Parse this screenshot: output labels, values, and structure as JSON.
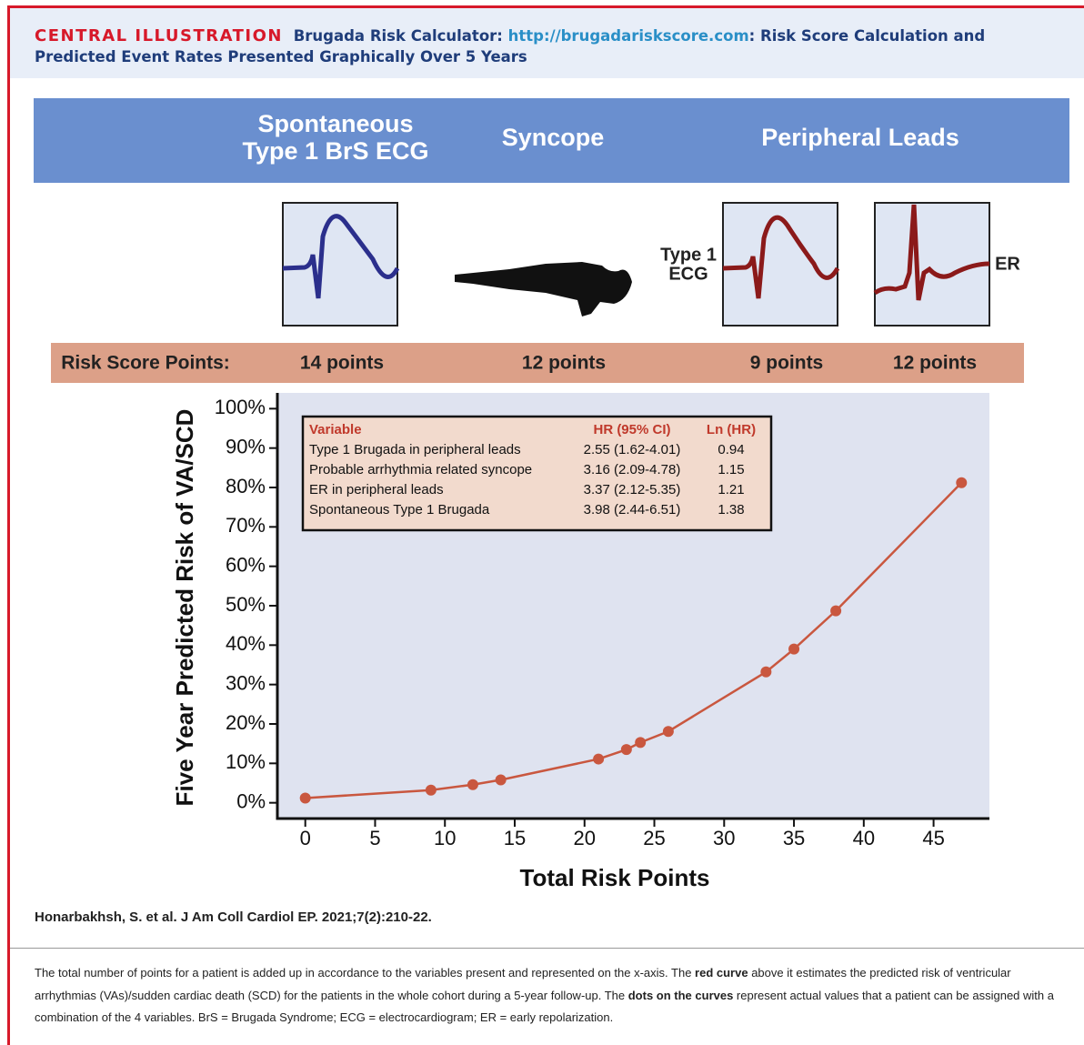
{
  "header": {
    "label": "CENTRAL ILLUSTRATION",
    "title_parts": [
      "Brugada Risk Calculator:",
      "http://brugadariskscore.com",
      ": Risk Score Calculation and Predicted Event Rates Presented Graphically Over 5 Years"
    ]
  },
  "banner": [
    {
      "lines": [
        "Spontaneous",
        "Type 1 BrS ECG"
      ]
    },
    {
      "lines": [
        "Syncope"
      ]
    },
    {
      "lines": [
        "Peripheral Leads"
      ]
    }
  ],
  "ecg_labels": {
    "type1": [
      "Type 1",
      "ECG"
    ],
    "er": "ER"
  },
  "risk_points": {
    "label": "Risk Score Points:",
    "items": [
      "14 points",
      "12 points",
      "9 points",
      "12 points"
    ]
  },
  "chart_data": {
    "type": "line",
    "x": [
      0,
      9,
      12,
      14,
      21,
      23,
      24,
      26,
      33,
      35,
      38,
      47
    ],
    "series": [
      {
        "color": "#c9573f",
        "values": [
          1.2,
          3.2,
          4.6,
          5.8,
          11.1,
          13.5,
          15.3,
          18.1,
          33.2,
          39.0,
          48.7,
          81.2
        ]
      }
    ],
    "xlim": [
      -2,
      49
    ],
    "ylim": [
      -4,
      104
    ],
    "xticks": [
      0,
      5,
      10,
      15,
      20,
      25,
      30,
      35,
      40,
      45
    ],
    "yticks": [
      {
        "value": 0,
        "label": "0%"
      },
      {
        "value": 10,
        "label": "10%"
      },
      {
        "value": 20,
        "label": "20%"
      },
      {
        "value": 30,
        "label": "30%"
      },
      {
        "value": 40,
        "label": "40%"
      },
      {
        "value": 50,
        "label": "50%"
      },
      {
        "value": 60,
        "label": "60%"
      },
      {
        "value": 70,
        "label": "70%"
      },
      {
        "value": 80,
        "label": "80%"
      },
      {
        "value": 90,
        "label": "90%"
      },
      {
        "value": 100,
        "label": "100%"
      }
    ],
    "xlabel": "Total Risk Points",
    "ylabel": "Five Year Predicted Risk of VA/SCD",
    "table": {
      "columns": [
        "Variable",
        "HR (95% CI)",
        "Ln (HR)"
      ],
      "rows": [
        [
          "Type 1 Brugada in peripheral leads",
          "2.55 (1.62-4.01)",
          "0.94"
        ],
        [
          "Probable arrhythmia related syncope",
          "3.16 (2.09-4.78)",
          "1.15"
        ],
        [
          "ER in peripheral leads",
          "3.37 (2.12-5.35)",
          "1.21"
        ],
        [
          "Spontaneous Type 1 Brugada",
          "3.98 (2.44-6.51)",
          "1.38"
        ]
      ]
    }
  },
  "citation": "Honarbakhsh, S. et al. J Am Coll Cardiol EP. 2021;7(2):210-22.",
  "caption": [
    "The total number of points for a patient is added up in accordance to the variables present and represented on the x-axis. The ",
    "red curve",
    " above it estimates the predicted risk of ventricular arrhythmias (VAs)/sudden cardiac death (SCD) for the patients in the whole cohort during a 5-year follow-up. The ",
    "dots on the curves",
    " represent actual values that a patient can be assigned with a combination of the 4 variables. BrS = Brugada Syndrome; ECG = electrocardiogram; ER = early repolarization."
  ]
}
